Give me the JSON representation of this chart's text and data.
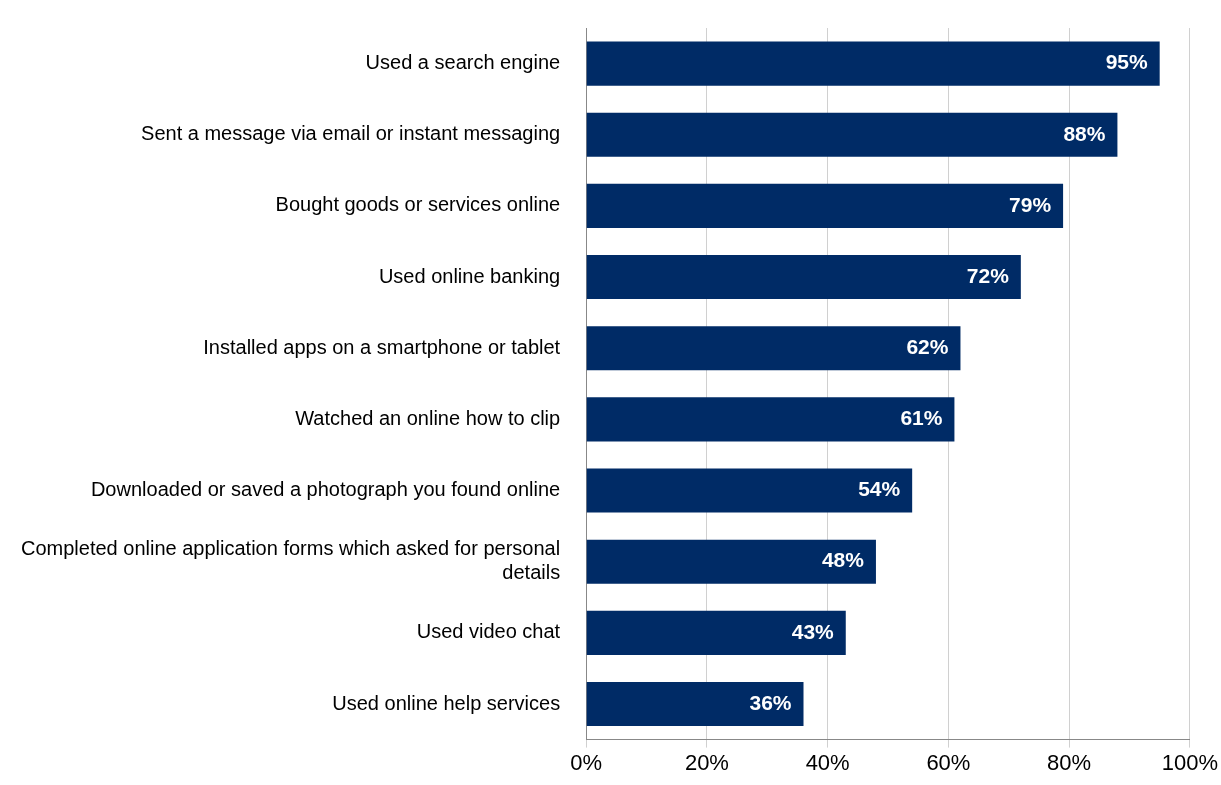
{
  "chart_data": {
    "type": "bar",
    "orientation": "horizontal",
    "categories": [
      "Used a search engine",
      "Sent a message via email or instant messaging",
      "Bought goods or services online",
      "Used online banking",
      "Installed apps on a smartphone or tablet",
      "Watched an online how to clip",
      "Downloaded or saved a photograph you found online",
      "Completed online application forms which asked for personal details",
      "Used video chat",
      "Used online help services"
    ],
    "values": [
      95,
      88,
      79,
      72,
      62,
      61,
      54,
      48,
      43,
      36
    ],
    "value_labels": [
      "95%",
      "88%",
      "79%",
      "72%",
      "62%",
      "61%",
      "54%",
      "48%",
      "43%",
      "36%"
    ],
    "color": "#002b66",
    "xlim": [
      0,
      100
    ],
    "xticks": [
      {
        "value": 0,
        "label": "0%"
      },
      {
        "value": 20,
        "label": "20%"
      },
      {
        "value": 40,
        "label": "40%"
      },
      {
        "value": 60,
        "label": "60%"
      },
      {
        "value": 80,
        "label": "80%"
      },
      {
        "value": 100,
        "label": "100%"
      }
    ],
    "grid": "x"
  }
}
